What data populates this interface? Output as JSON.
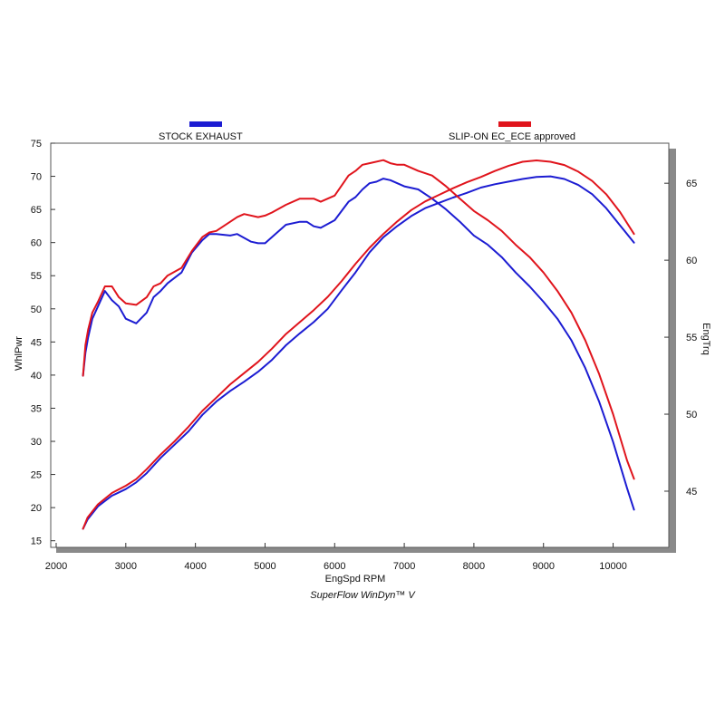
{
  "chart_data": {
    "type": "line",
    "xlabel": "EngSpd  RPM",
    "ylabel_left": "WhlPwr",
    "ylabel_right": "EngTrq",
    "footer": "SuperFlow WinDyn™ V",
    "xlim": [
      2000,
      10800
    ],
    "ylim_left": [
      14,
      75
    ],
    "ylim_right": [
      41.35,
      67.6
    ],
    "x_ticks": [
      "2000",
      "3000",
      "4000",
      "5000",
      "6000",
      "7000",
      "8000",
      "9000",
      "10000"
    ],
    "y_ticks_left": [
      "75",
      "70",
      "65",
      "60",
      "55",
      "50",
      "45",
      "40",
      "35",
      "30",
      "25",
      "20",
      "15"
    ],
    "y_ticks_right": [
      "65",
      "60",
      "55",
      "50",
      "45"
    ],
    "grid": false,
    "legend_position": "top",
    "legend": [
      {
        "label": "STOCK EXHAUST",
        "color": "#1c1cd2"
      },
      {
        "label": "SLIP-ON EC_ECE approved",
        "color": "#e0141c"
      }
    ],
    "series": [
      {
        "name": "STOCK EXHAUST",
        "quantity": "WhlPwr",
        "axis": "left",
        "color": "#1c1cd2",
        "points": [
          [
            2385,
            16.8
          ],
          [
            2450,
            18.2
          ],
          [
            2600,
            20.2
          ],
          [
            2800,
            21.8
          ],
          [
            3000,
            22.8
          ],
          [
            3150,
            23.8
          ],
          [
            3300,
            25.2
          ],
          [
            3500,
            27.5
          ],
          [
            3700,
            29.5
          ],
          [
            3900,
            31.5
          ],
          [
            4100,
            34
          ],
          [
            4300,
            36
          ],
          [
            4500,
            37.6
          ],
          [
            4700,
            39
          ],
          [
            4900,
            40.5
          ],
          [
            5100,
            42.3
          ],
          [
            5300,
            44.5
          ],
          [
            5500,
            46.3
          ],
          [
            5700,
            48
          ],
          [
            5900,
            50
          ],
          [
            6100,
            52.8
          ],
          [
            6300,
            55.5
          ],
          [
            6500,
            58.5
          ],
          [
            6700,
            60.8
          ],
          [
            6900,
            62.5
          ],
          [
            7100,
            64
          ],
          [
            7300,
            65.2
          ],
          [
            7500,
            66
          ],
          [
            7700,
            66.8
          ],
          [
            7900,
            67.5
          ],
          [
            8100,
            68.3
          ],
          [
            8300,
            68.8
          ],
          [
            8500,
            69.2
          ],
          [
            8700,
            69.6
          ],
          [
            8900,
            69.9
          ],
          [
            9100,
            70
          ],
          [
            9300,
            69.6
          ],
          [
            9500,
            68.7
          ],
          [
            9700,
            67.3
          ],
          [
            9900,
            65.2
          ],
          [
            10100,
            62.6
          ],
          [
            10300,
            60
          ]
        ]
      },
      {
        "name": "STOCK EXHAUST",
        "quantity": "EngTrq",
        "axis": "right",
        "color": "#1c1cd2",
        "points": [
          [
            2385,
            52.5
          ],
          [
            2420,
            54
          ],
          [
            2460,
            55
          ],
          [
            2520,
            56.2
          ],
          [
            2600,
            57
          ],
          [
            2700,
            58
          ],
          [
            2800,
            57.4
          ],
          [
            2900,
            57
          ],
          [
            3000,
            56.2
          ],
          [
            3150,
            55.9
          ],
          [
            3300,
            56.6
          ],
          [
            3400,
            57.6
          ],
          [
            3500,
            58
          ],
          [
            3600,
            58.5
          ],
          [
            3800,
            59.2
          ],
          [
            3950,
            60.5
          ],
          [
            4100,
            61.3
          ],
          [
            4200,
            61.7
          ],
          [
            4300,
            61.7
          ],
          [
            4500,
            61.6
          ],
          [
            4600,
            61.7
          ],
          [
            4800,
            61.2
          ],
          [
            4900,
            61.1
          ],
          [
            5000,
            61.1
          ],
          [
            5100,
            61.5
          ],
          [
            5300,
            62.3
          ],
          [
            5500,
            62.5
          ],
          [
            5600,
            62.5
          ],
          [
            5700,
            62.2
          ],
          [
            5800,
            62.1
          ],
          [
            6000,
            62.6
          ],
          [
            6200,
            63.8
          ],
          [
            6300,
            64.1
          ],
          [
            6400,
            64.6
          ],
          [
            6500,
            65
          ],
          [
            6600,
            65.1
          ],
          [
            6700,
            65.3
          ],
          [
            6800,
            65.2
          ],
          [
            6900,
            65
          ],
          [
            7000,
            64.8
          ],
          [
            7200,
            64.6
          ],
          [
            7400,
            64
          ],
          [
            7600,
            63.3
          ],
          [
            7800,
            62.5
          ],
          [
            8000,
            61.6
          ],
          [
            8200,
            61
          ],
          [
            8400,
            60.2
          ],
          [
            8600,
            59.2
          ],
          [
            8800,
            58.3
          ],
          [
            9000,
            57.3
          ],
          [
            9200,
            56.2
          ],
          [
            9400,
            54.8
          ],
          [
            9600,
            53
          ],
          [
            9800,
            50.8
          ],
          [
            10000,
            48.2
          ],
          [
            10200,
            45.2
          ],
          [
            10300,
            43.8
          ]
        ]
      },
      {
        "name": "SLIP-ON EC_ECE approved",
        "quantity": "WhlPwr",
        "axis": "left",
        "color": "#e0141c",
        "points": [
          [
            2385,
            16.8
          ],
          [
            2450,
            18.5
          ],
          [
            2600,
            20.5
          ],
          [
            2800,
            22.2
          ],
          [
            3000,
            23.3
          ],
          [
            3150,
            24.3
          ],
          [
            3300,
            25.8
          ],
          [
            3500,
            28
          ],
          [
            3700,
            30
          ],
          [
            3900,
            32.2
          ],
          [
            4100,
            34.6
          ],
          [
            4300,
            36.6
          ],
          [
            4500,
            38.6
          ],
          [
            4700,
            40.3
          ],
          [
            4900,
            42
          ],
          [
            5100,
            44
          ],
          [
            5300,
            46.2
          ],
          [
            5500,
            48
          ],
          [
            5700,
            49.8
          ],
          [
            5900,
            51.8
          ],
          [
            6100,
            54.2
          ],
          [
            6300,
            56.8
          ],
          [
            6500,
            59.2
          ],
          [
            6700,
            61.3
          ],
          [
            6900,
            63.2
          ],
          [
            7100,
            64.9
          ],
          [
            7300,
            66.2
          ],
          [
            7500,
            67.2
          ],
          [
            7700,
            68.2
          ],
          [
            7900,
            69.1
          ],
          [
            8100,
            69.9
          ],
          [
            8300,
            70.8
          ],
          [
            8500,
            71.6
          ],
          [
            8700,
            72.2
          ],
          [
            8900,
            72.4
          ],
          [
            9100,
            72.2
          ],
          [
            9300,
            71.7
          ],
          [
            9500,
            70.7
          ],
          [
            9700,
            69.3
          ],
          [
            9900,
            67.3
          ],
          [
            10100,
            64.6
          ],
          [
            10300,
            61.3
          ]
        ]
      },
      {
        "name": "SLIP-ON EC_ECE approved",
        "quantity": "EngTrq",
        "axis": "right",
        "color": "#e0141c",
        "points": [
          [
            2385,
            52.5
          ],
          [
            2420,
            54.5
          ],
          [
            2460,
            55.5
          ],
          [
            2520,
            56.6
          ],
          [
            2600,
            57.3
          ],
          [
            2700,
            58.3
          ],
          [
            2800,
            58.3
          ],
          [
            2900,
            57.6
          ],
          [
            3000,
            57.2
          ],
          [
            3150,
            57.1
          ],
          [
            3300,
            57.6
          ],
          [
            3400,
            58.3
          ],
          [
            3500,
            58.5
          ],
          [
            3600,
            59
          ],
          [
            3800,
            59.5
          ],
          [
            3950,
            60.6
          ],
          [
            4100,
            61.5
          ],
          [
            4200,
            61.8
          ],
          [
            4300,
            61.9
          ],
          [
            4500,
            62.5
          ],
          [
            4600,
            62.8
          ],
          [
            4700,
            63
          ],
          [
            4900,
            62.8
          ],
          [
            5000,
            62.9
          ],
          [
            5100,
            63.1
          ],
          [
            5300,
            63.6
          ],
          [
            5500,
            64
          ],
          [
            5700,
            64
          ],
          [
            5800,
            63.8
          ],
          [
            6000,
            64.2
          ],
          [
            6200,
            65.5
          ],
          [
            6300,
            65.8
          ],
          [
            6400,
            66.2
          ],
          [
            6500,
            66.3
          ],
          [
            6700,
            66.5
          ],
          [
            6800,
            66.3
          ],
          [
            6900,
            66.2
          ],
          [
            7000,
            66.2
          ],
          [
            7200,
            65.8
          ],
          [
            7400,
            65.5
          ],
          [
            7600,
            64.8
          ],
          [
            7800,
            64
          ],
          [
            8000,
            63.2
          ],
          [
            8200,
            62.6
          ],
          [
            8400,
            61.9
          ],
          [
            8600,
            61
          ],
          [
            8800,
            60.2
          ],
          [
            9000,
            59.2
          ],
          [
            9200,
            58
          ],
          [
            9400,
            56.6
          ],
          [
            9600,
            54.8
          ],
          [
            9800,
            52.6
          ],
          [
            10000,
            50
          ],
          [
            10200,
            47
          ],
          [
            10300,
            45.8
          ]
        ]
      }
    ]
  }
}
